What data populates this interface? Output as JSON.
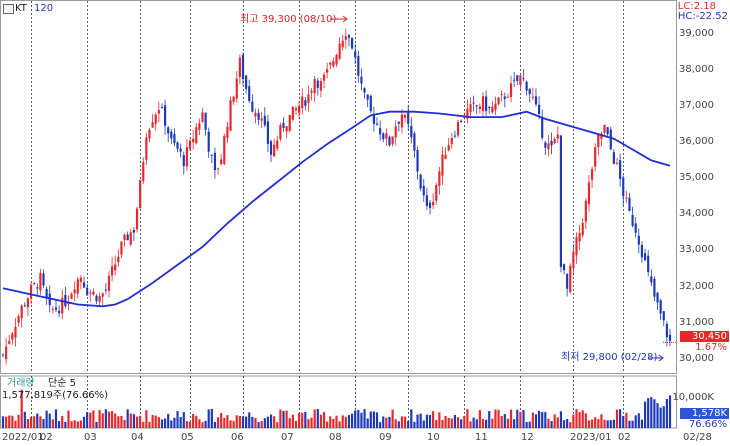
{
  "header": {
    "icon_name": "stock-window-icon",
    "ticker": "KT",
    "period": "120",
    "lc": "LC:2.18",
    "hc": "HC:-22.52"
  },
  "annotations": {
    "high": "최고 39,300 (08/10)",
    "low": "최저 29,800 (02/28)"
  },
  "price_tags": {
    "current": "30,450",
    "change_pct": "1.67%",
    "volume_change": "76.66%",
    "volume_current": "1,578K"
  },
  "volume_panel": {
    "title": "거래량",
    "mode": "단순 5",
    "summary": "1,577,819주(76.66%)"
  },
  "colors": {
    "up": "#e8262b",
    "down": "#1c39bb",
    "ma": "#1f2fd0",
    "grid": "#bdbdbd",
    "tag_red": "#e8262b",
    "tag_blue": "#2a55d6"
  },
  "chart_data": {
    "type": "candlestick",
    "ylim": [
      29600,
      39450
    ],
    "y_ticks": [
      "39,000",
      "38,000",
      "37,000",
      "36,000",
      "35,000",
      "34,000",
      "33,000",
      "32,000",
      "31,000",
      "30,000"
    ],
    "volume_ticks": [
      "10,000K"
    ],
    "x_ticks": [
      "2022/01",
      "02",
      "03",
      "04",
      "05",
      "06",
      "07",
      "08",
      "09",
      "10",
      "11",
      "12",
      "2023/01",
      "02",
      "02/28"
    ],
    "close_path": [
      [
        0,
        30100
      ],
      [
        3,
        30800
      ],
      [
        6,
        31400
      ],
      [
        9,
        31900
      ],
      [
        12,
        32200
      ],
      [
        15,
        31300
      ],
      [
        17,
        31400
      ],
      [
        19,
        31500
      ],
      [
        21,
        31700
      ],
      [
        23,
        32100
      ],
      [
        25,
        32300
      ],
      [
        27,
        31900
      ],
      [
        29,
        31800
      ],
      [
        31,
        31700
      ],
      [
        33,
        31900
      ],
      [
        35,
        32400
      ],
      [
        38,
        33100
      ],
      [
        40,
        33400
      ],
      [
        42,
        33600
      ],
      [
        44,
        34800
      ],
      [
        46,
        36300
      ],
      [
        48,
        36700
      ],
      [
        50,
        37000
      ],
      [
        52,
        36600
      ],
      [
        54,
        36000
      ],
      [
        56,
        35800
      ],
      [
        58,
        35500
      ],
      [
        60,
        35900
      ],
      [
        62,
        36400
      ],
      [
        64,
        36800
      ],
      [
        66,
        35900
      ],
      [
        68,
        35100
      ],
      [
        70,
        35600
      ],
      [
        72,
        36600
      ],
      [
        74,
        37400
      ],
      [
        76,
        38200
      ],
      [
        78,
        37500
      ],
      [
        80,
        37000
      ],
      [
        82,
        36800
      ],
      [
        84,
        36300
      ],
      [
        86,
        35700
      ],
      [
        88,
        36100
      ],
      [
        90,
        36500
      ],
      [
        92,
        36700
      ],
      [
        94,
        36900
      ],
      [
        96,
        37100
      ],
      [
        98,
        37300
      ],
      [
        100,
        37800
      ],
      [
        102,
        37600
      ],
      [
        104,
        37900
      ],
      [
        106,
        38300
      ],
      [
        108,
        38800
      ],
      [
        110,
        39100
      ],
      [
        112,
        38700
      ],
      [
        114,
        37900
      ],
      [
        116,
        37200
      ],
      [
        118,
        36800
      ],
      [
        120,
        36500
      ],
      [
        122,
        36200
      ],
      [
        124,
        36000
      ],
      [
        126,
        36500
      ],
      [
        128,
        36800
      ],
      [
        130,
        36400
      ],
      [
        132,
        35700
      ],
      [
        134,
        34800
      ],
      [
        136,
        34100
      ],
      [
        138,
        34500
      ],
      [
        140,
        35200
      ],
      [
        142,
        35800
      ],
      [
        144,
        36200
      ],
      [
        146,
        36500
      ],
      [
        148,
        36800
      ],
      [
        150,
        36900
      ],
      [
        152,
        37000
      ],
      [
        154,
        37100
      ],
      [
        156,
        36900
      ],
      [
        158,
        37000
      ],
      [
        160,
        37200
      ],
      [
        162,
        37400
      ],
      [
        164,
        37600
      ],
      [
        166,
        37800
      ],
      [
        168,
        37600
      ],
      [
        170,
        37200
      ],
      [
        172,
        36600
      ],
      [
        174,
        36000
      ],
      [
        176,
        35800
      ],
      [
        178,
        36200
      ],
      [
        179,
        32700
      ],
      [
        181,
        31900
      ],
      [
        183,
        32900
      ],
      [
        185,
        33500
      ],
      [
        187,
        34300
      ],
      [
        189,
        35300
      ],
      [
        191,
        36100
      ],
      [
        193,
        36400
      ],
      [
        195,
        35800
      ],
      [
        197,
        35300
      ],
      [
        199,
        34600
      ],
      [
        201,
        34000
      ],
      [
        203,
        33600
      ],
      [
        205,
        33000
      ],
      [
        207,
        32300
      ],
      [
        209,
        31700
      ],
      [
        211,
        31200
      ],
      [
        213,
        30700
      ],
      [
        214,
        30450
      ]
    ],
    "ma120_path": [
      [
        0,
        31950
      ],
      [
        8,
        31800
      ],
      [
        16,
        31650
      ],
      [
        24,
        31500
      ],
      [
        32,
        31450
      ],
      [
        36,
        31500
      ],
      [
        40,
        31650
      ],
      [
        48,
        32100
      ],
      [
        56,
        32600
      ],
      [
        64,
        33100
      ],
      [
        72,
        33750
      ],
      [
        80,
        34350
      ],
      [
        88,
        34900
      ],
      [
        96,
        35450
      ],
      [
        104,
        35950
      ],
      [
        112,
        36400
      ],
      [
        118,
        36750
      ],
      [
        124,
        36850
      ],
      [
        132,
        36850
      ],
      [
        140,
        36800
      ],
      [
        150,
        36700
      ],
      [
        160,
        36700
      ],
      [
        168,
        36850
      ],
      [
        174,
        36650
      ],
      [
        182,
        36450
      ],
      [
        190,
        36250
      ],
      [
        196,
        36100
      ],
      [
        202,
        35800
      ],
      [
        208,
        35500
      ],
      [
        214,
        35350
      ]
    ],
    "series": [
      {
        "name": "KT",
        "values_path": "close_path"
      },
      {
        "name": "120",
        "values_path": "ma120_path"
      }
    ]
  }
}
